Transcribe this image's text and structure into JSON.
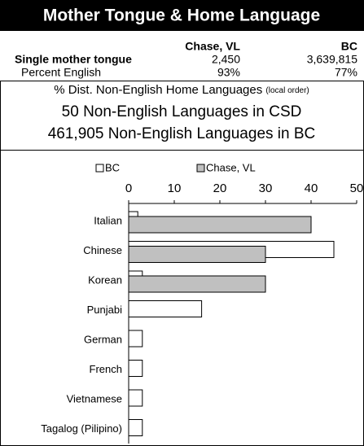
{
  "title": "Mother Tongue & Home Language",
  "table": {
    "columns": [
      "Chase, VL",
      "BC"
    ],
    "rows": [
      {
        "label": "Single mother tongue",
        "values": [
          "2,450",
          "3,639,815"
        ]
      },
      {
        "label": "Percent English",
        "values": [
          "93%",
          "77%"
        ]
      }
    ]
  },
  "summary": {
    "heading": "% Dist. Non-English Home Languages",
    "note": "(local order)",
    "lines": [
      "50 Non-English Languages in CSD",
      "461,905 Non-English Languages in BC"
    ]
  },
  "chart_data": {
    "type": "bar",
    "orientation": "horizontal",
    "categories": [
      "Italian",
      "Chinese",
      "Korean",
      "Punjabi",
      "German",
      "French",
      "Vietnamese",
      "Tagalog (Pilipino)"
    ],
    "series": [
      {
        "name": "BC",
        "color": "#ffffff",
        "values": [
          2,
          45,
          3,
          16,
          3,
          3,
          3,
          3
        ]
      },
      {
        "name": "Chase, VL",
        "color": "#c0c0c0",
        "values": [
          40,
          30,
          30,
          0,
          0,
          0,
          0,
          0
        ]
      }
    ],
    "xlim": [
      0,
      50
    ],
    "xticks": [
      0,
      10,
      20,
      30,
      40,
      50
    ]
  }
}
